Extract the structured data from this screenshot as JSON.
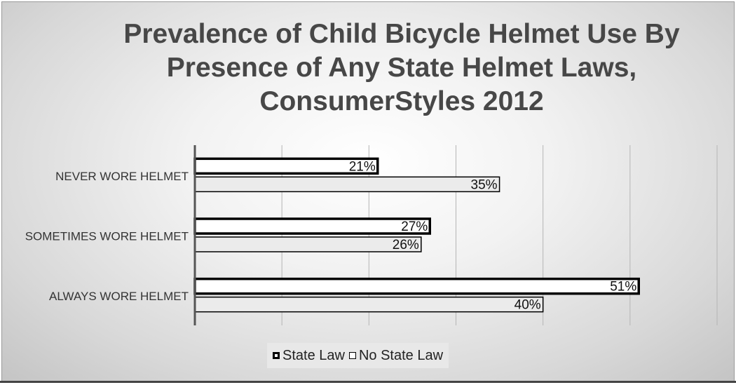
{
  "chart_data": {
    "type": "bar",
    "orientation": "horizontal",
    "title_lines": [
      "Prevalence of Child Bicycle Helmet Use By",
      "Presence of Any State Helmet Laws,",
      "ConsumerStyles 2012"
    ],
    "categories": [
      "NEVER WORE HELMET",
      "SOMETIMES WORE HELMET",
      "ALWAYS WORE HELMET"
    ],
    "series": [
      {
        "name": "State Law",
        "values": [
          21,
          27,
          51
        ],
        "labels": [
          "21%",
          "27%",
          "51%"
        ],
        "fill": "#ffffff",
        "stroke": "#000000",
        "stroke_weight": "heavy"
      },
      {
        "name": "No State Law",
        "values": [
          35,
          26,
          40
        ],
        "labels": [
          "35%",
          "26%",
          "40%"
        ],
        "fill": "#ebebeb",
        "stroke": "#000000",
        "stroke_weight": "light"
      }
    ],
    "xlim": [
      0,
      60
    ],
    "grid": true,
    "legend_position": "bottom",
    "colors": {
      "title": "#474747",
      "axis": "#555555",
      "gridline": "#b5b5b5"
    }
  }
}
